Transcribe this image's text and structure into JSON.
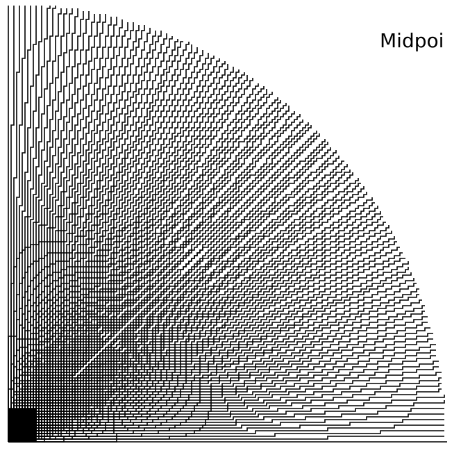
{
  "title": "Midpoi",
  "figure": {
    "line_color": "#000000",
    "background_color": "#ffffff",
    "line_count": 120
  }
}
